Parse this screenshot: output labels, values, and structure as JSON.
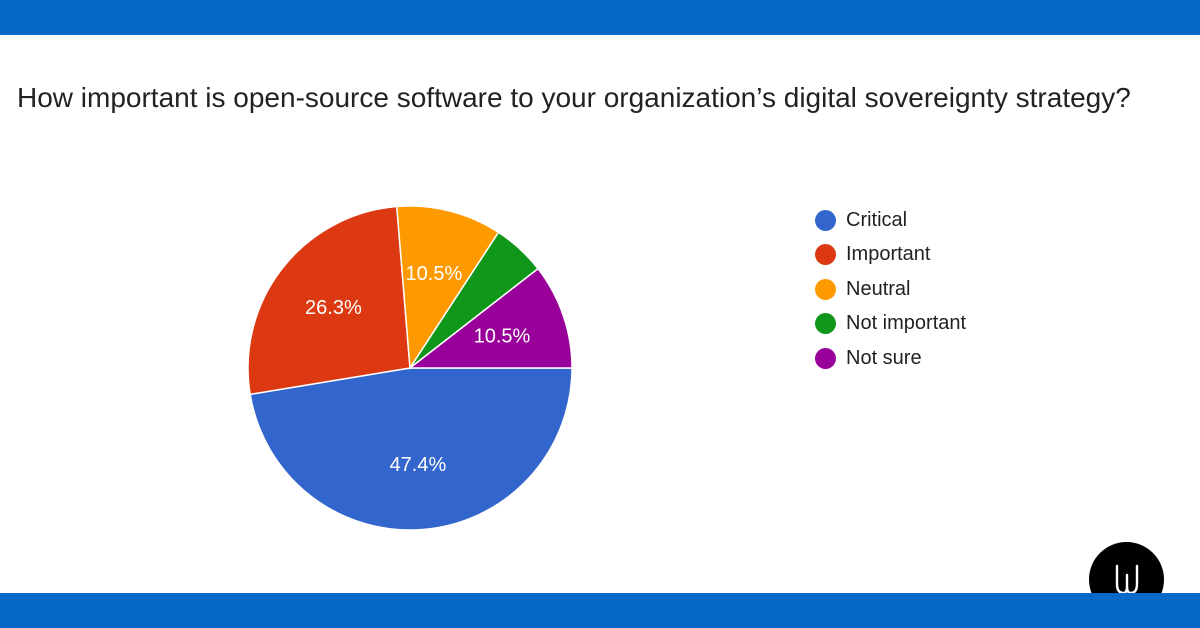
{
  "colors": {
    "bar": "#0868c8",
    "background": "#ffffff",
    "text": "#222222",
    "logo_bg": "#000000",
    "logo_fg": "#ffffff"
  },
  "logo": {
    "icon": "w-logo-icon"
  },
  "chart_data": {
    "type": "pie",
    "title": "How important is open-source software to your organization’s digital sovereignty strategy?",
    "legend_position": "right",
    "slices": [
      {
        "label": "Critical",
        "value": 47.4,
        "display": "47.4%",
        "color": "#3366cc"
      },
      {
        "label": "Important",
        "value": 26.3,
        "display": "26.3%",
        "color": "#dc3912"
      },
      {
        "label": "Neutral",
        "value": 10.5,
        "display": "10.5%",
        "color": "#ff9900"
      },
      {
        "label": "Not important",
        "value": 5.3,
        "display": "",
        "color": "#109618"
      },
      {
        "label": "Not sure",
        "value": 10.5,
        "display": "10.5%",
        "color": "#990099"
      }
    ]
  }
}
